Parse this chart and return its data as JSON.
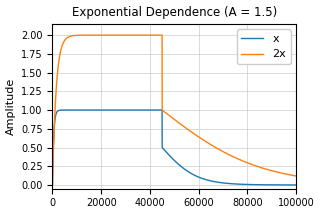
{
  "title": "Exponential Dependence (A = 1.5)",
  "ylabel": "Amplitude",
  "xlabel": "",
  "xlim": [
    0,
    100000
  ],
  "ylim": [
    -0.05,
    2.15
  ],
  "color_x": "#1f77b4",
  "color_2x": "#ff7f0e",
  "label_x": "x",
  "label_2x": "2x",
  "n_samples": 100000,
  "plateau_x": 1.0,
  "plateau_2x": 2.0,
  "attack_tau_x": 500,
  "attack_tau_2x": 1500,
  "release_start": 45000,
  "release_tau_x": 7000,
  "release_tau_2x": 20000,
  "grid": true,
  "figsize": [
    3.2,
    2.14
  ],
  "dpi": 100,
  "yticks": [
    0.0,
    0.25,
    0.5,
    0.75,
    1.0,
    1.25,
    1.5,
    1.75,
    2.0
  ],
  "xticks": [
    0,
    20000,
    40000,
    60000,
    80000,
    100000
  ]
}
